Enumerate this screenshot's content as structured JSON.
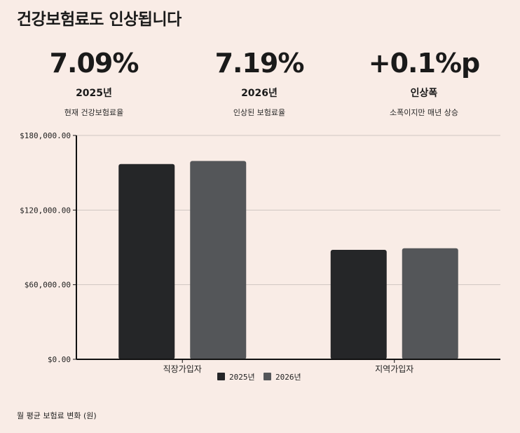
{
  "title": "건강보험료도 인상됩니다",
  "stats": [
    {
      "value": "7.09%",
      "label": "2025년",
      "desc": "현재 건강보험료율"
    },
    {
      "value": "7.19%",
      "label": "2026년",
      "desc": "인상된 보험료율"
    },
    {
      "value": "+0.1%p",
      "label": "인상폭",
      "desc": "소폭이지만 매년 상승"
    }
  ],
  "chart_data": {
    "type": "bar",
    "categories": [
      "직장가입자",
      "지역가입자"
    ],
    "series": [
      {
        "name": "2025년",
        "values": [
          157000,
          88000
        ],
        "color": "#252628"
      },
      {
        "name": "2026년",
        "values": [
          159500,
          89300
        ],
        "color": "#545659"
      }
    ],
    "ylim": [
      0,
      180000
    ],
    "yticks": [
      "$0.00",
      "$60,000.00",
      "$120,000.00",
      "$180,000.00"
    ],
    "ytick_values": [
      0,
      60000,
      120000,
      180000
    ],
    "grid": true,
    "legend": "bottom"
  },
  "caption": "월 평균 보험료 변화 (원)"
}
